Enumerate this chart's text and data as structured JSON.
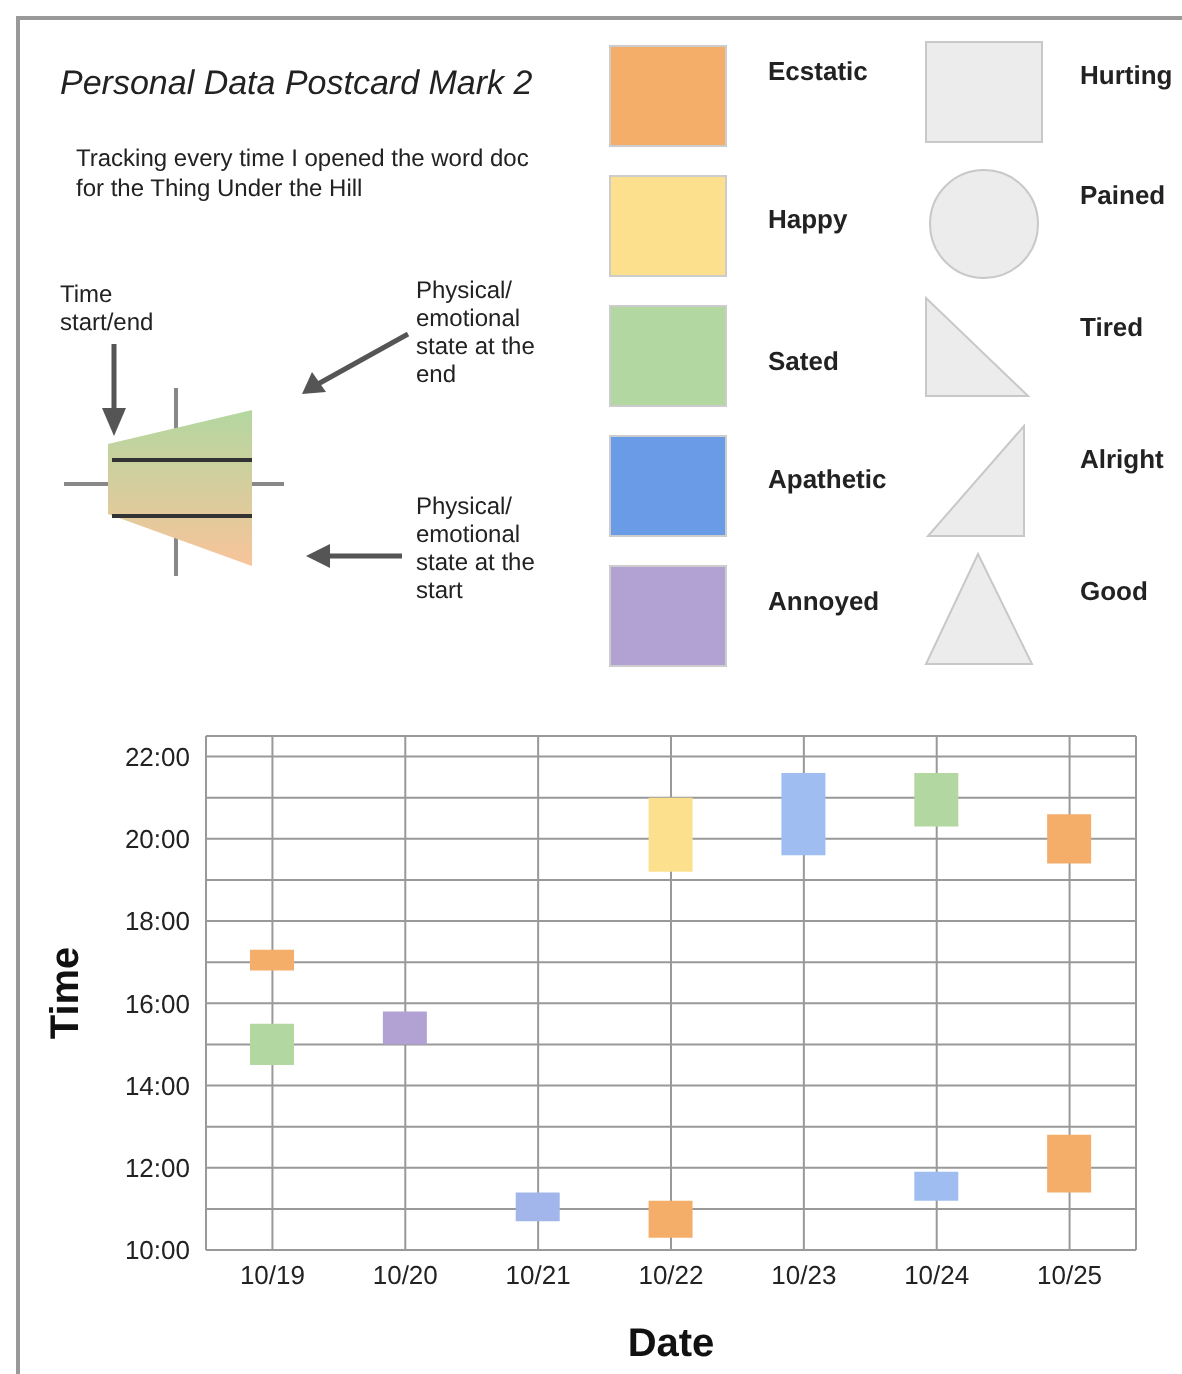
{
  "chart_data": {
    "type": "bar",
    "title": "Personal Data Postcard Mark 2",
    "subtitle": "Tracking every time I opened the word doc for the Thing Under the Hill",
    "xlabel": "Date",
    "ylabel": "Time",
    "categories": [
      "10/19",
      "10/20",
      "10/21",
      "10/22",
      "10/23",
      "10/24",
      "10/25"
    ],
    "series": [
      {
        "values": [
          1.0,
          0.8,
          0.7,
          0.9,
          2.0,
          0.7,
          1.4
        ],
        "base": [
          14.5,
          15.0,
          10.7,
          10.3,
          19.6,
          11.2,
          11.4
        ],
        "colors": [
          "#b3d7a0",
          "#b2a2d4",
          "#a2b6ec",
          "#f4ae6a",
          "#9fbdf0",
          "#9fbdf0",
          "#f4ae6a"
        ]
      },
      {
        "values": [
          0.5,
          null,
          null,
          1.8,
          null,
          1.3,
          1.2
        ],
        "base": [
          16.8,
          null,
          null,
          19.2,
          null,
          20.3,
          19.4
        ],
        "colors": [
          "#f4ae6a",
          null,
          null,
          "#fde08e",
          null,
          "#b3d7a0",
          "#f4ae6a"
        ]
      }
    ],
    "ylim": [
      10,
      22.5
    ],
    "yticks": [
      {
        "value": 10,
        "label": "10:00"
      },
      {
        "value": 11,
        "label": null
      },
      {
        "value": 12,
        "label": "12:00"
      },
      {
        "value": 13,
        "label": null
      },
      {
        "value": 14,
        "label": "14:00"
      },
      {
        "value": 15,
        "label": null
      },
      {
        "value": 16,
        "label": "16:00"
      },
      {
        "value": 17,
        "label": null
      },
      {
        "value": 18,
        "label": "18:00"
      },
      {
        "value": 19,
        "label": null
      },
      {
        "value": 20,
        "label": "20:00"
      },
      {
        "value": 21,
        "label": null
      },
      {
        "value": 22,
        "label": "22:00"
      }
    ],
    "grid": true,
    "legend": false,
    "annotations": [
      "Time start/end",
      "Physical/ emotional state at the end",
      "Physical/ emotional state at the start",
      "Ecstatic",
      "Happy",
      "Sated",
      "Apathetic",
      "Annoyed",
      "Hurting",
      "Pained",
      "Tired",
      "Alright",
      "Good"
    ]
  }
}
